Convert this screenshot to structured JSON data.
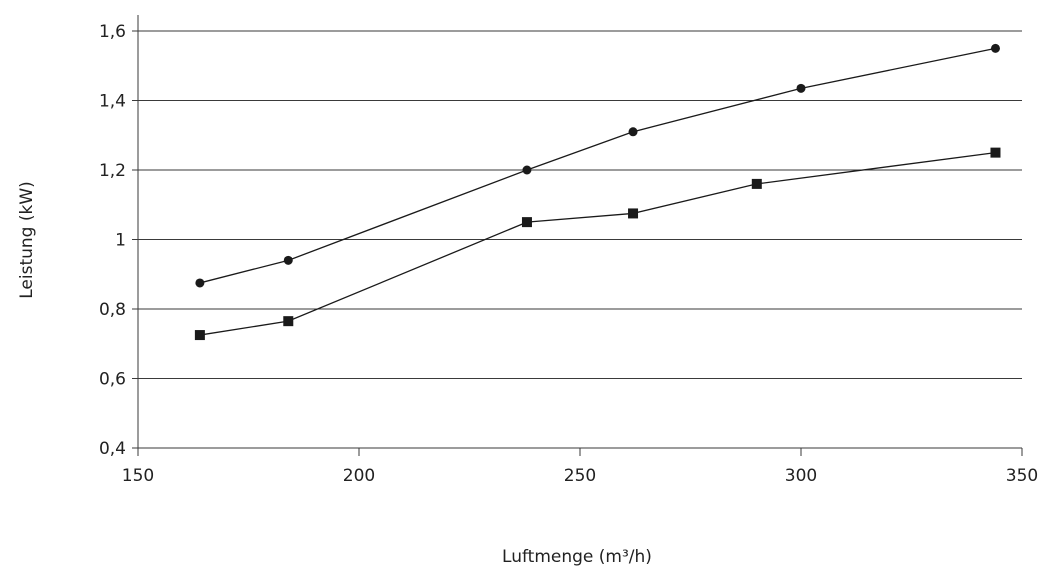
{
  "chart_data": {
    "type": "line",
    "title": "",
    "xlabel": "Luftmenge (m³/h)",
    "ylabel": "Leistung (kW)",
    "xlim": [
      150,
      350
    ],
    "ylim": [
      0.4,
      1.6
    ],
    "x_ticks": [
      "150",
      "200",
      "250",
      "300",
      "350"
    ],
    "y_ticks": [
      "0,4",
      "0,6",
      "0,8",
      "1",
      "1,2",
      "1,4",
      "1,6"
    ],
    "grid": "horizontal",
    "legend": "none",
    "series": [
      {
        "marker": "circle",
        "color": "#1a1a1a",
        "x": [
          164,
          184,
          238,
          262,
          300,
          344
        ],
        "y": [
          0.875,
          0.94,
          1.2,
          1.31,
          1.435,
          1.55
        ]
      },
      {
        "marker": "square",
        "color": "#1a1a1a",
        "x": [
          164,
          184,
          238,
          262,
          290,
          344
        ],
        "y": [
          0.725,
          0.765,
          1.05,
          1.075,
          1.16,
          1.25
        ]
      }
    ]
  }
}
